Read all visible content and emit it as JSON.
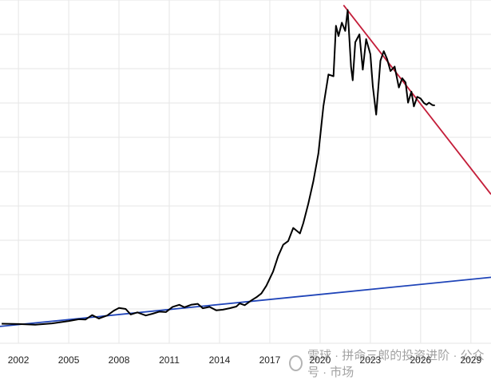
{
  "chart_data": {
    "type": "line",
    "x_ticks": [
      2002,
      2005,
      2008,
      2011,
      2014,
      2017,
      2020,
      2023,
      2026,
      2029
    ],
    "xlim": [
      2000.9,
      2030.2
    ],
    "ylim": [
      0,
      100
    ],
    "grid": true,
    "series": [
      {
        "color": "#000000",
        "points": [
          [
            2001.0,
            5.7
          ],
          [
            2002.0,
            5.6
          ],
          [
            2003.0,
            5.4
          ],
          [
            2004.0,
            5.8
          ],
          [
            2005.0,
            6.5
          ],
          [
            2005.6,
            7.0
          ],
          [
            2006.0,
            6.9
          ],
          [
            2006.4,
            8.2
          ],
          [
            2006.8,
            7.2
          ],
          [
            2007.3,
            8.1
          ],
          [
            2007.7,
            9.5
          ],
          [
            2008.0,
            10.3
          ],
          [
            2008.4,
            10.0
          ],
          [
            2008.7,
            8.4
          ],
          [
            2009.1,
            9.0
          ],
          [
            2009.6,
            8.1
          ],
          [
            2010.0,
            8.6
          ],
          [
            2010.4,
            9.2
          ],
          [
            2010.8,
            9.1
          ],
          [
            2011.2,
            10.6
          ],
          [
            2011.6,
            11.2
          ],
          [
            2011.9,
            10.5
          ],
          [
            2012.3,
            11.2
          ],
          [
            2012.7,
            11.5
          ],
          [
            2013.0,
            10.2
          ],
          [
            2013.4,
            10.6
          ],
          [
            2013.8,
            9.6
          ],
          [
            2014.2,
            9.8
          ],
          [
            2014.6,
            10.2
          ],
          [
            2015.0,
            10.7
          ],
          [
            2015.2,
            11.6
          ],
          [
            2015.5,
            11.1
          ],
          [
            2015.9,
            12.5
          ],
          [
            2016.2,
            13.4
          ],
          [
            2016.5,
            14.5
          ],
          [
            2016.8,
            16.8
          ],
          [
            2017.2,
            20.9
          ],
          [
            2017.5,
            25.4
          ],
          [
            2017.8,
            28.7
          ],
          [
            2018.1,
            29.8
          ],
          [
            2018.4,
            33.6
          ],
          [
            2018.8,
            32.0
          ],
          [
            2019.0,
            35.0
          ],
          [
            2019.3,
            40.7
          ],
          [
            2019.6,
            47.2
          ],
          [
            2019.9,
            55.3
          ],
          [
            2020.2,
            69.1
          ],
          [
            2020.5,
            78.3
          ],
          [
            2020.8,
            77.8
          ],
          [
            2020.95,
            92.5
          ],
          [
            2021.1,
            89.5
          ],
          [
            2021.3,
            93.4
          ],
          [
            2021.5,
            91.0
          ],
          [
            2021.65,
            97.1
          ],
          [
            2021.85,
            80.5
          ],
          [
            2021.95,
            76.6
          ],
          [
            2022.1,
            87.7
          ],
          [
            2022.35,
            90.0
          ],
          [
            2022.55,
            79.7
          ],
          [
            2022.75,
            88.6
          ],
          [
            2023.0,
            84.2
          ],
          [
            2023.15,
            74.8
          ],
          [
            2023.35,
            66.6
          ],
          [
            2023.6,
            82.3
          ],
          [
            2023.8,
            85.1
          ],
          [
            2024.0,
            82.8
          ],
          [
            2024.2,
            79.3
          ],
          [
            2024.45,
            80.6
          ],
          [
            2024.7,
            74.5
          ],
          [
            2024.9,
            77.2
          ],
          [
            2025.1,
            76.0
          ],
          [
            2025.25,
            70.1
          ],
          [
            2025.45,
            73.3
          ],
          [
            2025.6,
            69.0
          ],
          [
            2025.8,
            71.8
          ],
          [
            2026.0,
            71.3
          ],
          [
            2026.2,
            70.0
          ],
          [
            2026.35,
            69.5
          ],
          [
            2026.5,
            70.1
          ],
          [
            2026.7,
            69.4
          ],
          [
            2026.85,
            69.3
          ]
        ]
      },
      {
        "color": "#1f44b8",
        "points": [
          [
            2000.9,
            4.9
          ],
          [
            2030.2,
            19.2
          ]
        ]
      },
      {
        "color": "#c41e3a",
        "points": [
          [
            2021.4,
            98.5
          ],
          [
            2030.2,
            43.4
          ]
        ]
      }
    ]
  },
  "watermark": {
    "text": "雪球 · 拼命三郎的投资进阶  ·  公众号 · 市场"
  }
}
